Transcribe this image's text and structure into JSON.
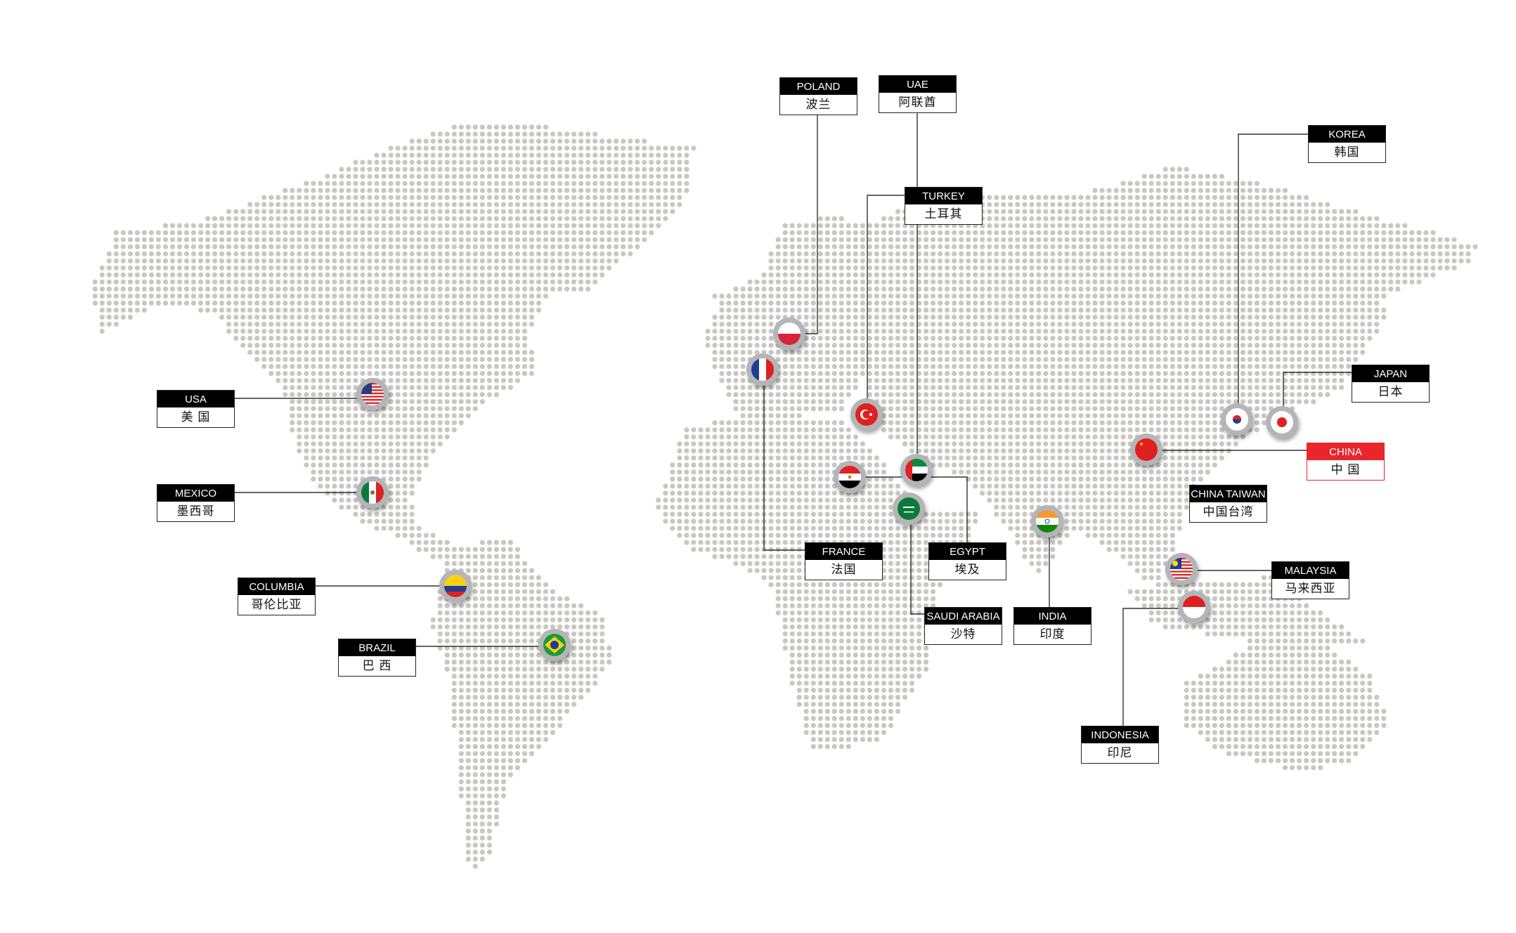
{
  "map": {
    "dot_color": "#c9c7c2",
    "line_color": "#333333",
    "highlight_color": "#e8262b"
  },
  "locations": [
    {
      "id": "usa",
      "en": "USA",
      "zh": "美 国",
      "flag_icon": "usa-flag-icon"
    },
    {
      "id": "mexico",
      "en": "MEXICO",
      "zh": "墨西哥",
      "flag_icon": "mexico-flag-icon"
    },
    {
      "id": "columbia",
      "en": "COLUMBIA",
      "zh": "哥伦比亚",
      "flag_icon": "colombia-flag-icon"
    },
    {
      "id": "brazil",
      "en": "BRAZIL",
      "zh": "巴 西",
      "flag_icon": "brazil-flag-icon"
    },
    {
      "id": "poland",
      "en": "POLAND",
      "zh": "波兰",
      "flag_icon": "poland-flag-icon"
    },
    {
      "id": "uae",
      "en": "UAE",
      "zh": "阿联酋",
      "flag_icon": "uae-flag-icon"
    },
    {
      "id": "turkey",
      "en": "TURKEY",
      "zh": "土耳其",
      "flag_icon": "turkey-flag-icon"
    },
    {
      "id": "france",
      "en": "FRANCE",
      "zh": "法国",
      "flag_icon": "france-flag-icon"
    },
    {
      "id": "egypt",
      "en": "EGYPT",
      "zh": "埃及",
      "flag_icon": "egypt-flag-icon"
    },
    {
      "id": "saudi",
      "en": "SAUDI ARABIA",
      "zh": "沙特",
      "flag_icon": "saudi-arabia-flag-icon"
    },
    {
      "id": "india",
      "en": "INDIA",
      "zh": "印度",
      "flag_icon": "india-flag-icon"
    },
    {
      "id": "china",
      "en": "CHINA",
      "zh": "中 国",
      "flag_icon": "china-flag-icon",
      "highlight": true
    },
    {
      "id": "taiwan",
      "en": "CHINA TAIWAN",
      "zh": "中国台湾"
    },
    {
      "id": "korea",
      "en": "KOREA",
      "zh": "韩国",
      "flag_icon": "korea-flag-icon"
    },
    {
      "id": "japan",
      "en": "JAPAN",
      "zh": "日本",
      "flag_icon": "japan-flag-icon"
    },
    {
      "id": "malaysia",
      "en": "MALAYSIA",
      "zh": "马来西亚",
      "flag_icon": "malaysia-flag-icon"
    },
    {
      "id": "indonesia",
      "en": "INDONESIA",
      "zh": "印尼",
      "flag_icon": "indonesia-flag-icon"
    }
  ]
}
